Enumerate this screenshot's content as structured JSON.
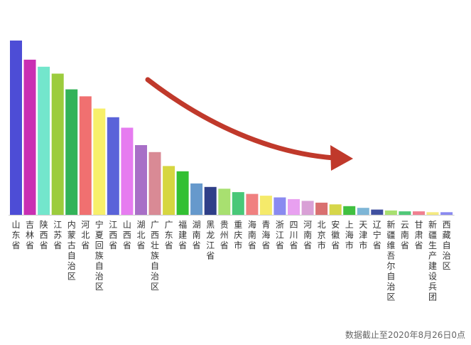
{
  "chart_data": {
    "type": "bar",
    "title": "",
    "xlabel": "",
    "ylabel": "",
    "ylim": [
      0,
      100
    ],
    "grid": false,
    "categories": [
      "山东省",
      "吉林省",
      "陕西省",
      "江苏省",
      "内蒙古自治区",
      "河北省",
      "宁夏回族自治区",
      "江西省",
      "山西省",
      "湖北省",
      "广西壮族自治区",
      "广东省",
      "福建省",
      "湖南省",
      "黑龙江省",
      "贵州省",
      "重庆市",
      "海南省",
      "青海省",
      "浙江省",
      "四川省",
      "河南省",
      "北京市",
      "安徽省",
      "上海市",
      "天津市",
      "辽宁省",
      "新疆维吾尔自治区",
      "云南省",
      "甘肃省",
      "新疆生产建设兵团",
      "西藏自治区"
    ],
    "values": [
      100,
      89,
      85,
      81,
      72,
      68,
      61,
      56,
      50,
      40,
      36,
      28,
      25,
      18,
      16,
      15,
      13,
      12,
      11,
      10,
      9,
      8,
      7,
      6,
      5,
      4,
      3,
      2.5,
      2,
      2,
      1.5,
      1.5
    ],
    "colors": [
      "#4d4dd6",
      "#c92fb3",
      "#73e6cc",
      "#9ccc3d",
      "#33b359",
      "#f07070",
      "#f7ef6a",
      "#5a63d9",
      "#e67cf0",
      "#a86fc7",
      "#d98a95",
      "#d6d640",
      "#33c033",
      "#6699cc",
      "#2f3f88",
      "#a8e070",
      "#48c878",
      "#f08080",
      "#f5ea6a",
      "#8a8af0",
      "#e8a0f0",
      "#d9a0d6",
      "#d97070",
      "#d6d64a",
      "#40c040",
      "#7eb6d6",
      "#3f4f9f",
      "#a8e070",
      "#50c878",
      "#f08090",
      "#f5ea80",
      "#8a8af0"
    ]
  },
  "annotation": {
    "arrow_color": "#c0392b"
  },
  "footnote": "数据截止至2020年8月26日0点"
}
